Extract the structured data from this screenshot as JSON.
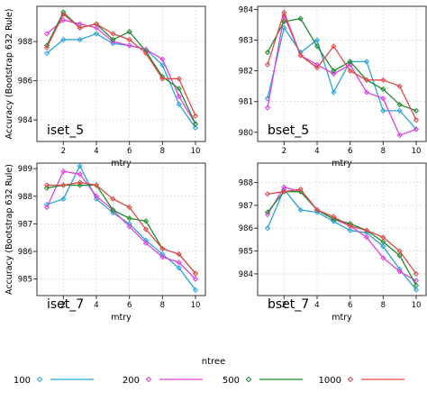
{
  "chart_data": {
    "type": "line",
    "xlabel": "mtry",
    "ylabel": "Accuracy (Bootstrap 632 Rule)",
    "legend": {
      "title": "ntree",
      "placement": "bottom",
      "entries": [
        {
          "name": "100",
          "color": "#2aa3d8",
          "marker": "diamond"
        },
        {
          "name": "200",
          "color": "#e040e0",
          "marker": "diamond"
        },
        {
          "name": "500",
          "color": "#1e8c2e",
          "marker": "diamond"
        },
        {
          "name": "1000",
          "color": "#e04848",
          "marker": "diamond"
        }
      ]
    },
    "x": [
      1,
      2,
      3,
      4,
      5,
      6,
      7,
      8,
      9,
      10
    ],
    "xticks": [
      2,
      4,
      6,
      8,
      10
    ],
    "xlim": [
      0.4,
      10.6
    ],
    "grid": true,
    "panels": [
      {
        "label": "iset_5",
        "ylim": [
          0.9829,
          0.9898
        ],
        "yticks": [
          0.984,
          0.986,
          0.988
        ],
        "ytick_labels": [
          "984",
          "986",
          "988"
        ],
        "series": [
          {
            "name": "100",
            "values": [
              0.9874,
              0.9881,
              0.9881,
              0.9884,
              0.9879,
              0.9878,
              0.9876,
              0.9868,
              0.9848,
              0.9836
            ]
          },
          {
            "name": "200",
            "values": [
              0.9884,
              0.9891,
              0.9889,
              0.9887,
              0.988,
              0.9878,
              0.9876,
              0.9871,
              0.9852,
              0.9838
            ]
          },
          {
            "name": "500",
            "values": [
              0.9878,
              0.9895,
              0.9887,
              0.9889,
              0.9881,
              0.9885,
              0.9875,
              0.9862,
              0.9856,
              0.9838
            ]
          },
          {
            "name": "1000",
            "values": [
              0.9877,
              0.9894,
              0.9887,
              0.9889,
              0.9884,
              0.9881,
              0.9874,
              0.9861,
              0.9861,
              0.9842
            ]
          }
        ]
      },
      {
        "label": "bset_5",
        "ylim": [
          0.9797,
          0.9841
        ],
        "yticks": [
          0.98,
          0.981,
          0.982,
          0.983,
          0.984
        ],
        "ytick_labels": [
          "980",
          "981",
          "982",
          "983",
          "984"
        ],
        "series": [
          {
            "name": "100",
            "values": [
              0.9811,
              0.9834,
              0.9826,
              0.983,
              0.9813,
              0.9823,
              0.9823,
              0.9807,
              0.9807,
              0.9801
            ]
          },
          {
            "name": "200",
            "values": [
              0.9808,
              0.9838,
              0.9825,
              0.9822,
              0.9819,
              0.9822,
              0.9813,
              0.9811,
              0.9799,
              0.9801
            ]
          },
          {
            "name": "500",
            "values": [
              0.9826,
              0.9836,
              0.9837,
              0.9828,
              0.982,
              0.9823,
              0.9817,
              0.9814,
              0.9809,
              0.9807
            ]
          },
          {
            "name": "1000",
            "values": [
              0.9822,
              0.9839,
              0.9825,
              0.9821,
              0.9828,
              0.982,
              0.9817,
              0.9817,
              0.9815,
              0.9804
            ]
          }
        ]
      },
      {
        "label": "iset_7",
        "ylim": [
          0.9844,
          0.9892
        ],
        "yticks": [
          0.985,
          0.986,
          0.987,
          0.988,
          0.989
        ],
        "ytick_labels": [
          "985",
          "986",
          "987",
          "988",
          "989"
        ],
        "series": [
          {
            "name": "100",
            "values": [
              0.9877,
              0.9879,
              0.9891,
              0.9879,
              0.9874,
              0.987,
              0.9864,
              0.9859,
              0.9854,
              0.9846
            ]
          },
          {
            "name": "200",
            "values": [
              0.9876,
              0.9889,
              0.9888,
              0.988,
              0.9875,
              0.9869,
              0.9863,
              0.9858,
              0.9856,
              0.985
            ]
          },
          {
            "name": "500",
            "values": [
              0.9883,
              0.9884,
              0.9884,
              0.9884,
              0.9875,
              0.9872,
              0.9871,
              0.9861,
              0.9859,
              0.9852
            ]
          },
          {
            "name": "1000",
            "values": [
              0.9884,
              0.9884,
              0.9885,
              0.9884,
              0.9879,
              0.9876,
              0.9868,
              0.9861,
              0.9859,
              0.9852
            ]
          }
        ]
      },
      {
        "label": "bset_7",
        "ylim": [
          0.98305,
          0.98885
        ],
        "yticks": [
          0.984,
          0.985,
          0.986,
          0.987,
          0.988
        ],
        "ytick_labels": [
          "984",
          "985",
          "986",
          "987",
          "988"
        ],
        "series": [
          {
            "name": "100",
            "values": [
              0.986,
              0.9877,
              0.9868,
              0.9867,
              0.9863,
              0.9859,
              0.9858,
              0.9852,
              0.9842,
              0.9833
            ]
          },
          {
            "name": "200",
            "values": [
              0.9866,
              0.9878,
              0.9876,
              0.9868,
              0.9864,
              0.9861,
              0.9856,
              0.9847,
              0.9841,
              0.9837
            ]
          },
          {
            "name": "500",
            "values": [
              0.9867,
              0.9876,
              0.9876,
              0.9868,
              0.9864,
              0.9862,
              0.9859,
              0.9854,
              0.9848,
              0.9835
            ]
          },
          {
            "name": "1000",
            "values": [
              0.9875,
              0.9876,
              0.9877,
              0.9868,
              0.9865,
              0.9861,
              0.9859,
              0.9856,
              0.985,
              0.984
            ]
          }
        ]
      }
    ]
  }
}
